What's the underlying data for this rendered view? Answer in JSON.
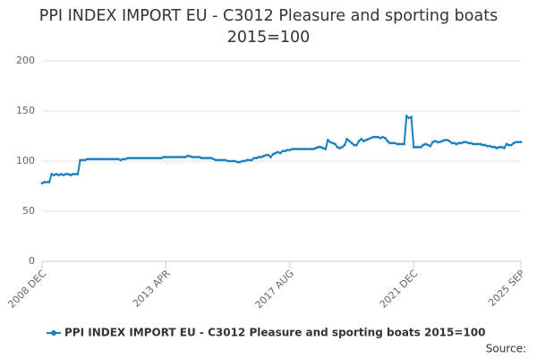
{
  "chart_data": {
    "type": "line",
    "title": "PPI INDEX IMPORT EU - C3012 Pleasure and sporting boats 2015=100",
    "source_label": "Source:",
    "categories": [
      "2008 DEC",
      null,
      null,
      null,
      null,
      null,
      null,
      null,
      null,
      null,
      null,
      null,
      null,
      null,
      null,
      null,
      null,
      null,
      null,
      null,
      null,
      null,
      null,
      null,
      null,
      null,
      null,
      null,
      null,
      null,
      null,
      null,
      null,
      null,
      null,
      null,
      null,
      null,
      null,
      null,
      null,
      null,
      null,
      null,
      null,
      null,
      null,
      null,
      null,
      null,
      null,
      null,
      "2013 APR",
      null,
      null,
      null,
      null,
      null,
      null,
      null,
      null,
      null,
      null,
      null,
      null,
      null,
      null,
      null,
      null,
      null,
      null,
      null,
      null,
      null,
      null,
      null,
      null,
      null,
      null,
      null,
      null,
      null,
      null,
      null,
      null,
      null,
      null,
      null,
      null,
      null,
      null,
      null,
      null,
      null,
      null,
      null,
      null,
      null,
      null,
      null,
      null,
      null,
      null,
      null,
      "2017 AUG",
      null,
      null,
      null,
      null,
      null,
      null,
      null,
      null,
      null,
      null,
      null,
      null,
      null,
      null,
      null,
      null,
      null,
      null,
      null,
      null,
      null,
      null,
      null,
      null,
      null,
      null,
      null,
      null,
      null,
      null,
      null,
      null,
      null,
      null,
      null,
      null,
      null,
      null,
      null,
      null,
      null,
      null,
      null,
      null,
      null,
      null,
      null,
      null,
      null,
      null,
      null,
      "2021 DEC",
      null,
      null,
      null,
      null,
      null,
      null,
      null,
      null,
      null,
      null,
      null,
      null,
      null,
      null,
      null,
      null,
      null,
      null,
      null,
      null,
      null,
      null,
      null,
      null,
      null,
      null,
      null,
      null,
      null,
      null,
      null,
      null,
      null,
      null,
      null,
      null,
      null,
      null,
      null,
      null,
      null,
      null,
      null,
      null,
      "2025 SEP"
    ],
    "series": [
      {
        "name": "PPI INDEX IMPORT EU - C3012 Pleasure and sporting boats 2015=100",
        "color": "#1a80bd",
        "values": [
          78,
          79,
          79,
          79,
          87,
          86,
          87,
          86,
          87,
          86,
          87,
          87,
          86,
          87,
          87,
          87,
          101,
          101,
          101,
          102,
          102,
          102,
          102,
          102,
          102,
          102,
          102,
          102,
          102,
          102,
          102,
          102,
          102,
          101,
          102,
          102,
          103,
          103,
          103,
          103,
          103,
          103,
          103,
          103,
          103,
          103,
          103,
          103,
          103,
          103,
          103,
          104,
          104,
          104,
          104,
          104,
          104,
          104,
          104,
          104,
          104,
          105,
          105,
          104,
          104,
          104,
          104,
          103,
          103,
          103,
          103,
          103,
          102,
          101,
          101,
          101,
          101,
          101,
          100,
          100,
          100,
          100,
          99,
          99,
          100,
          100,
          101,
          101,
          101,
          103,
          103,
          104,
          104,
          105,
          106,
          106,
          104,
          107,
          108,
          109,
          108,
          110,
          110,
          111,
          111,
          112,
          112,
          112,
          112,
          112,
          112,
          112,
          112,
          112,
          112,
          113,
          114,
          114,
          113,
          112,
          121,
          119,
          118,
          117,
          114,
          113,
          114,
          116,
          122,
          120,
          118,
          116,
          116,
          120,
          122,
          120,
          121,
          122,
          123,
          124,
          124,
          124,
          123,
          124,
          123,
          120,
          118,
          118,
          118,
          117,
          117,
          117,
          117,
          145,
          143,
          144,
          114,
          114,
          114,
          114,
          116,
          117,
          116,
          115,
          119,
          120,
          119,
          119,
          120,
          121,
          121,
          120,
          118,
          118,
          117,
          118,
          118,
          119,
          119,
          118,
          118,
          117,
          117,
          117,
          117,
          116,
          116,
          115,
          115,
          114,
          114,
          113,
          114,
          114,
          113,
          117,
          116,
          116,
          118,
          119,
          119,
          119
        ]
      }
    ],
    "ylim": [
      0,
      200
    ],
    "yticks": [
      0,
      50,
      100,
      150,
      200
    ],
    "grid": true
  }
}
